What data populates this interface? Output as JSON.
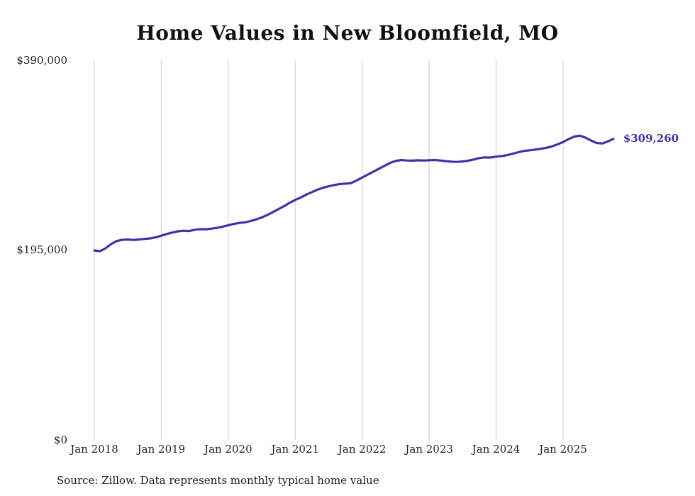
{
  "title": "Home Values in New Bloomfield, MO",
  "source_note": "Source: Zillow. Data represents monthly typical home value",
  "colors": {
    "line": "#3b35a9",
    "grid": "#cccccc",
    "text": "#222222",
    "title": "#111111"
  },
  "chart_data": {
    "type": "line",
    "title": "Home Values in New Bloomfield, MO",
    "xlabel": "",
    "ylabel": "",
    "ylim": [
      0,
      390000
    ],
    "y_ticks": [
      0,
      195000,
      390000
    ],
    "y_tick_labels": [
      "$0",
      "$195,000",
      "$390,000"
    ],
    "x_tick_labels": [
      "Jan 2018",
      "Jan 2019",
      "Jan 2020",
      "Jan 2021",
      "Jan 2022",
      "Jan 2023",
      "Jan 2024",
      "Jan 2025"
    ],
    "grid": "vertical-only",
    "legend_position": "none",
    "final_value": 309260,
    "final_value_label": "$309,260",
    "series": [
      {
        "name": "Monthly typical home value",
        "months": [
          "2018-01",
          "2018-02",
          "2018-03",
          "2018-04",
          "2018-05",
          "2018-06",
          "2018-07",
          "2018-08",
          "2018-09",
          "2018-10",
          "2018-11",
          "2018-12",
          "2019-01",
          "2019-02",
          "2019-03",
          "2019-04",
          "2019-05",
          "2019-06",
          "2019-07",
          "2019-08",
          "2019-09",
          "2019-10",
          "2019-11",
          "2019-12",
          "2020-01",
          "2020-02",
          "2020-03",
          "2020-04",
          "2020-05",
          "2020-06",
          "2020-07",
          "2020-08",
          "2020-09",
          "2020-10",
          "2020-11",
          "2020-12",
          "2021-01",
          "2021-02",
          "2021-03",
          "2021-04",
          "2021-05",
          "2021-06",
          "2021-07",
          "2021-08",
          "2021-09",
          "2021-10",
          "2021-11",
          "2021-12",
          "2022-01",
          "2022-02",
          "2022-03",
          "2022-04",
          "2022-05",
          "2022-06",
          "2022-07",
          "2022-08",
          "2022-09",
          "2022-10",
          "2022-11",
          "2022-12",
          "2023-01",
          "2023-02",
          "2023-03",
          "2023-04",
          "2023-05",
          "2023-06",
          "2023-07",
          "2023-08",
          "2023-09",
          "2023-10",
          "2023-11",
          "2023-12",
          "2024-01",
          "2024-02",
          "2024-03",
          "2024-04",
          "2024-05",
          "2024-06",
          "2024-07",
          "2024-08",
          "2024-09",
          "2024-10",
          "2024-11",
          "2024-12",
          "2025-01",
          "2025-02",
          "2025-03",
          "2025-04",
          "2025-05",
          "2025-06",
          "2025-07",
          "2025-08",
          "2025-09",
          "2025-10"
        ],
        "values": [
          194600,
          193900,
          196800,
          201200,
          204300,
          205600,
          205900,
          205400,
          205900,
          206500,
          207000,
          208200,
          209800,
          211600,
          213100,
          214300,
          214900,
          214600,
          215900,
          216600,
          216400,
          217100,
          217900,
          219100,
          220600,
          221900,
          222900,
          223600,
          224900,
          226600,
          228600,
          231100,
          234100,
          237100,
          240100,
          243600,
          246600,
          249100,
          252100,
          254600,
          257100,
          259100,
          260600,
          261900,
          262900,
          263300,
          263900,
          266600,
          269600,
          272600,
          275600,
          278600,
          281600,
          284600,
          286600,
          287600,
          287100,
          286900,
          287300,
          287100,
          287300,
          287600,
          287100,
          286400,
          285900,
          285600,
          286100,
          286900,
          288100,
          289600,
          290300,
          290100,
          291100,
          291600,
          292600,
          294100,
          295600,
          296900,
          297600,
          298300,
          299100,
          300100,
          301600,
          303600,
          306100,
          309100,
          311600,
          312600,
          310600,
          307600,
          305100,
          304600,
          306600,
          309260
        ]
      }
    ]
  }
}
